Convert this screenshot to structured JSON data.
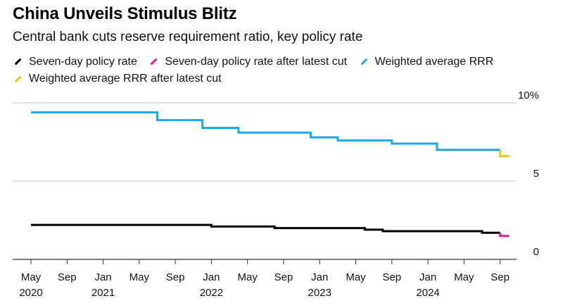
{
  "header": {
    "title": "China Unveils Stimulus Blitz",
    "subtitle": "Central bank cuts reserve requirement ratio, key policy rate"
  },
  "legend": [
    {
      "label": "Seven-day policy rate",
      "color": "#000000"
    },
    {
      "label": "Seven-day policy rate after latest cut",
      "color": "#e8178a"
    },
    {
      "label": "Weighted average RRR",
      "color": "#1ba8e8"
    },
    {
      "label": "Weighted average RRR after latest cut",
      "color": "#f6c21a"
    }
  ],
  "chart_data": {
    "type": "line",
    "title": "China Unveils Stimulus Blitz",
    "subtitle": "Central bank cuts reserve requirement ratio, key policy rate",
    "xlabel": "",
    "ylabel": "",
    "ylim": [
      0,
      10
    ],
    "xlim": [
      "2020-05",
      "2024-12"
    ],
    "grid": true,
    "legend_position": "top-left",
    "y_ticks": [
      {
        "value": 10,
        "label": "10%"
      },
      {
        "value": 5,
        "label": "5"
      },
      {
        "value": 0,
        "label": "0"
      }
    ],
    "x_ticks": [
      {
        "date": "2020-05",
        "label": "May",
        "year": "2020"
      },
      {
        "date": "2020-09",
        "label": "Sep",
        "year": ""
      },
      {
        "date": "2021-01",
        "label": "Jan",
        "year": "2021"
      },
      {
        "date": "2021-05",
        "label": "May",
        "year": ""
      },
      {
        "date": "2021-09",
        "label": "Sep",
        "year": ""
      },
      {
        "date": "2022-01",
        "label": "Jan",
        "year": "2022"
      },
      {
        "date": "2022-05",
        "label": "May",
        "year": ""
      },
      {
        "date": "2022-09",
        "label": "Sep",
        "year": ""
      },
      {
        "date": "2023-01",
        "label": "Jan",
        "year": "2023"
      },
      {
        "date": "2023-05",
        "label": "May",
        "year": ""
      },
      {
        "date": "2023-09",
        "label": "Sep",
        "year": ""
      },
      {
        "date": "2024-01",
        "label": "Jan",
        "year": "2024"
      },
      {
        "date": "2024-05",
        "label": "May",
        "year": ""
      },
      {
        "date": "2024-09",
        "label": "Sep",
        "year": ""
      }
    ],
    "series": [
      {
        "name": "Weighted average RRR",
        "color": "#1ba8e8",
        "step": true,
        "points": [
          {
            "x": "2020-05",
            "y": 9.4
          },
          {
            "x": "2021-07",
            "y": 8.9
          },
          {
            "x": "2021-12",
            "y": 8.4
          },
          {
            "x": "2022-04",
            "y": 8.1
          },
          {
            "x": "2022-12",
            "y": 7.8
          },
          {
            "x": "2023-03",
            "y": 7.6
          },
          {
            "x": "2023-09",
            "y": 7.4
          },
          {
            "x": "2024-02",
            "y": 7.0
          },
          {
            "x": "2024-09",
            "y": 7.0
          }
        ]
      },
      {
        "name": "Weighted average RRR after latest cut",
        "color": "#f6c21a",
        "step": true,
        "points": [
          {
            "x": "2024-09",
            "y": 7.0
          },
          {
            "x": "2024-09",
            "y": 6.6
          },
          {
            "x": "2024-10",
            "y": 6.6
          }
        ]
      },
      {
        "name": "Seven-day policy rate",
        "color": "#000000",
        "step": true,
        "points": [
          {
            "x": "2020-05",
            "y": 2.2
          },
          {
            "x": "2022-01",
            "y": 2.1
          },
          {
            "x": "2022-08",
            "y": 2.0
          },
          {
            "x": "2023-06",
            "y": 1.9
          },
          {
            "x": "2023-08",
            "y": 1.8
          },
          {
            "x": "2024-07",
            "y": 1.7
          },
          {
            "x": "2024-09",
            "y": 1.7
          }
        ]
      },
      {
        "name": "Seven-day policy rate after latest cut",
        "color": "#e8178a",
        "step": true,
        "points": [
          {
            "x": "2024-09",
            "y": 1.7
          },
          {
            "x": "2024-09",
            "y": 1.5
          },
          {
            "x": "2024-10",
            "y": 1.5
          }
        ]
      }
    ]
  }
}
